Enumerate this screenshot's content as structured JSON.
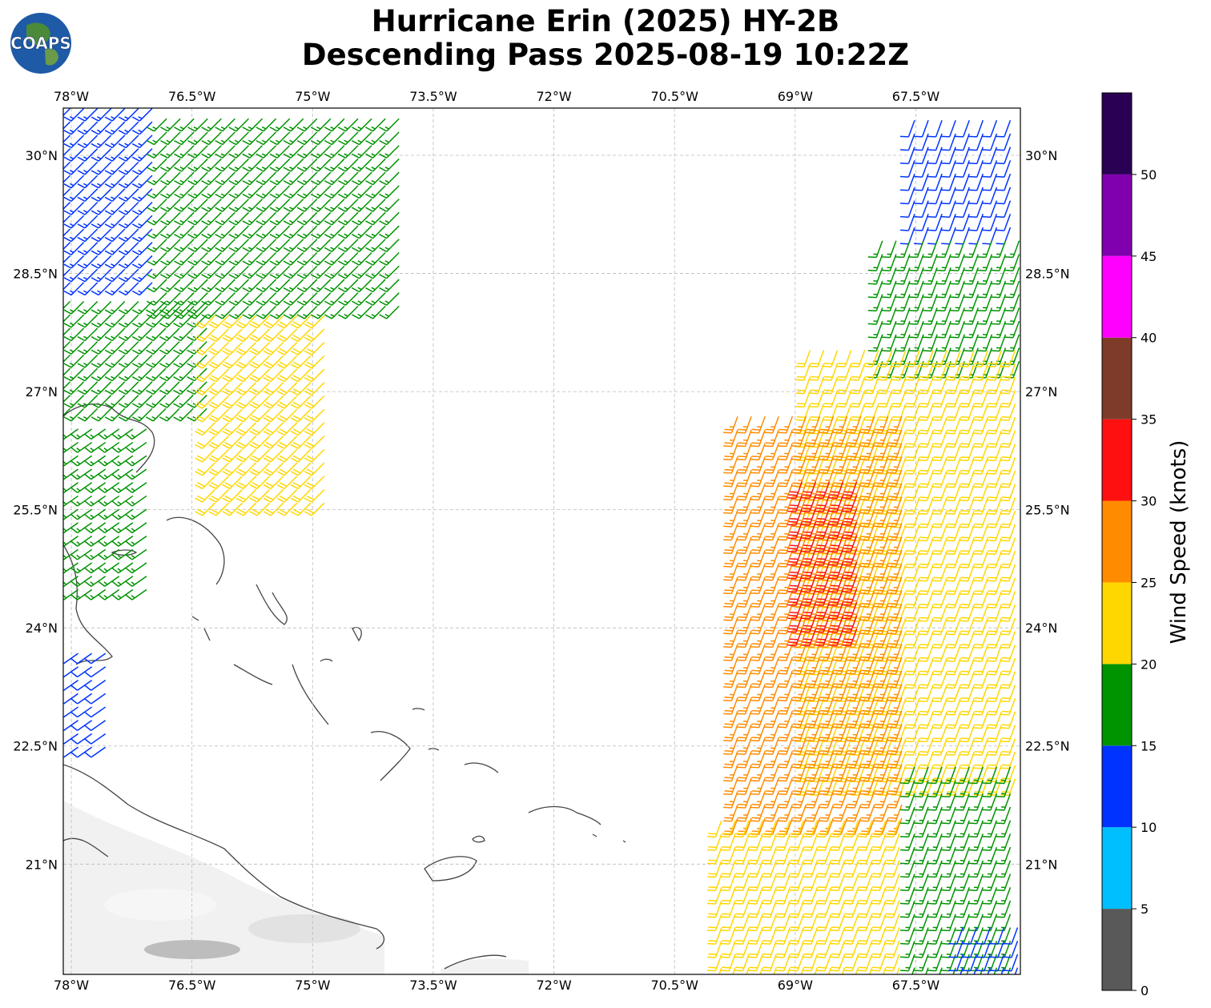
{
  "title": {
    "line1": "Hurricane Erin (2025) HY-2B",
    "line2": "Descending Pass 2025-08-19 10:22Z"
  },
  "logo": {
    "text": "COAPS",
    "icon": "globe-logo"
  },
  "map": {
    "lon_range": [
      -78.1,
      -66.2
    ],
    "lat_range": [
      19.6,
      30.6
    ],
    "lon_ticks": [
      {
        "v": -78.0,
        "label": "78°W"
      },
      {
        "v": -76.5,
        "label": "76.5°W"
      },
      {
        "v": -75.0,
        "label": "75°W"
      },
      {
        "v": -73.5,
        "label": "73.5°W"
      },
      {
        "v": -72.0,
        "label": "72°W"
      },
      {
        "v": -70.5,
        "label": "70.5°W"
      },
      {
        "v": -69.0,
        "label": "69°W"
      },
      {
        "v": -67.5,
        "label": "67.5°W"
      }
    ],
    "lat_ticks": [
      {
        "v": 30.0,
        "label": "30°N"
      },
      {
        "v": 28.5,
        "label": "28.5°N"
      },
      {
        "v": 27.0,
        "label": "27°N"
      },
      {
        "v": 25.5,
        "label": "25.5°N"
      },
      {
        "v": 24.0,
        "label": "24°N"
      },
      {
        "v": 22.5,
        "label": "22.5°N"
      },
      {
        "v": 21.0,
        "label": "21°N"
      }
    ],
    "gridlines": true,
    "coastline_color": "#444444",
    "land_shading": "light-grey"
  },
  "colorbar": {
    "label": "Wind Speed (knots)",
    "ticks": [
      "0",
      "5",
      "10",
      "15",
      "20",
      "25",
      "30",
      "35",
      "40",
      "45",
      "50"
    ],
    "bins": [
      {
        "min": 0,
        "max": 5,
        "color": "#595959"
      },
      {
        "min": 5,
        "max": 10,
        "color": "#00bfff"
      },
      {
        "min": 10,
        "max": 15,
        "color": "#0033ff"
      },
      {
        "min": 15,
        "max": 20,
        "color": "#009400"
      },
      {
        "min": 20,
        "max": 25,
        "color": "#ffd700"
      },
      {
        "min": 25,
        "max": 30,
        "color": "#ff8c00"
      },
      {
        "min": 30,
        "max": 35,
        "color": "#ff1010"
      },
      {
        "min": 35,
        "max": 40,
        "color": "#7f3b29"
      },
      {
        "min": 40,
        "max": 45,
        "color": "#ff00ff"
      },
      {
        "min": 45,
        "max": 50,
        "color": "#8000b0"
      },
      {
        "min": 50,
        "max": 55,
        "color": "#2a0055"
      }
    ],
    "max_value": 55
  },
  "swaths": [
    {
      "name": "western-swath",
      "corners": [
        [
          -78.0,
          30.6
        ],
        [
          -73.8,
          30.6
        ],
        [
          -76.8,
          26.5
        ],
        [
          -78.0,
          26.5
        ]
      ],
      "direction_deg": 225,
      "zones": [
        {
          "lon_min": -78.1,
          "lon_max": -76.9,
          "lat_min": 28.3,
          "lat_max": 30.6,
          "speed": 13
        },
        {
          "lon_min": -76.9,
          "lon_max": -73.8,
          "lat_min": 28.0,
          "lat_max": 30.6,
          "speed": 17
        },
        {
          "lon_min": -78.1,
          "lon_max": -76.3,
          "lat_min": 26.7,
          "lat_max": 28.3,
          "speed": 17
        },
        {
          "lon_min": -76.3,
          "lon_max": -74.8,
          "lat_min": 25.5,
          "lat_max": 28.0,
          "speed": 22
        }
      ]
    },
    {
      "name": "bahamas-patch",
      "direction_deg": 235,
      "zones": [
        {
          "lon_min": -78.0,
          "lon_max": -77.0,
          "lat_min": 24.4,
          "lat_max": 26.6,
          "speed": 17
        },
        {
          "lon_min": -78.0,
          "lon_max": -77.5,
          "lat_min": 22.4,
          "lat_max": 23.8,
          "speed": 12
        }
      ]
    },
    {
      "name": "eastern-swath",
      "direction_deg": 200,
      "zones": [
        {
          "lon_min": -67.6,
          "lon_max": -66.2,
          "lat_min": 29.0,
          "lat_max": 30.6,
          "speed": 12
        },
        {
          "lon_min": -68.0,
          "lon_max": -66.2,
          "lat_min": 27.3,
          "lat_max": 29.0,
          "speed": 17
        },
        {
          "lon_min": -68.9,
          "lon_max": -66.2,
          "lat_min": 22.0,
          "lat_max": 27.6,
          "speed": 22
        },
        {
          "lon_min": -69.8,
          "lon_max": -67.6,
          "lat_min": 21.5,
          "lat_max": 26.8,
          "speed": 27
        },
        {
          "lon_min": -69.0,
          "lon_max": -68.2,
          "lat_min": 23.9,
          "lat_max": 25.9,
          "speed": 32
        },
        {
          "lon_min": -67.6,
          "lon_max": -66.2,
          "lat_min": 19.6,
          "lat_max": 22.4,
          "speed": 17
        },
        {
          "lon_min": -70.0,
          "lon_max": -67.7,
          "lat_min": 19.6,
          "lat_max": 21.6,
          "speed": 22
        },
        {
          "lon_min": -67.0,
          "lon_max": -66.2,
          "lat_min": 19.6,
          "lat_max": 20.3,
          "speed": 12
        }
      ]
    }
  ]
}
